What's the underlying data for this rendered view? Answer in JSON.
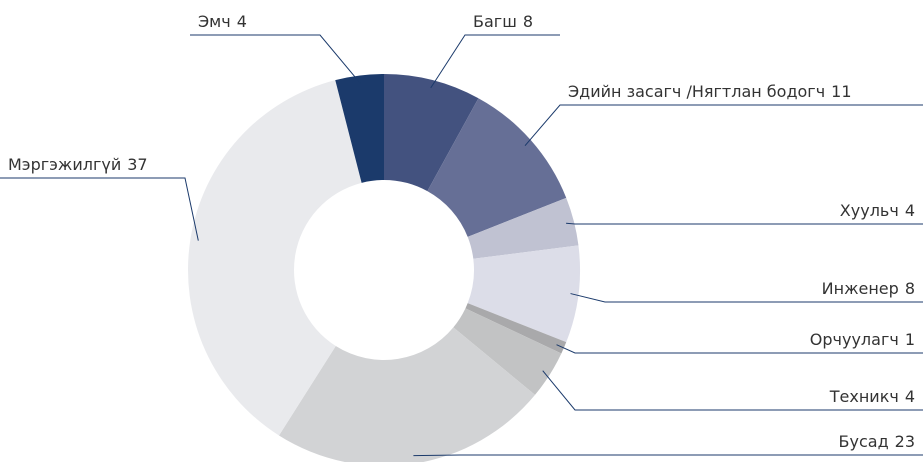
{
  "chart_data": {
    "type": "donut",
    "categories": [
      "Багш",
      "Эдийн засагч /Нягтлан бодогч",
      "Хуульч",
      "Инженер",
      "Орчуулагч",
      "Техникч",
      "Бусад",
      "Мэргэжилгүй",
      "Эмч"
    ],
    "values": [
      8,
      11,
      4,
      8,
      1,
      4,
      23,
      37,
      4
    ],
    "colors": [
      "#43527f",
      "#666f96",
      "#c0c2d2",
      "#dcdde8",
      "#a9a9ab",
      "#c2c3c4",
      "#d2d3d5",
      "#e9eaed",
      "#1b3a6b"
    ]
  }
}
